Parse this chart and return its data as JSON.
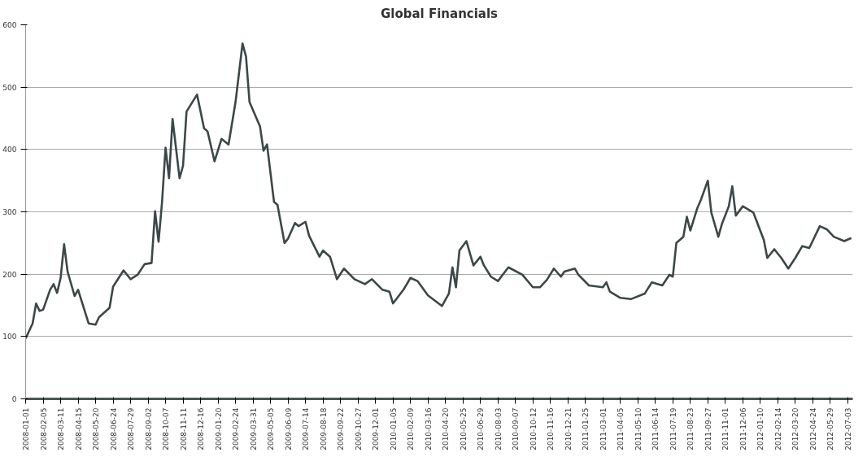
{
  "chart_data": {
    "type": "line",
    "title": "Global Financials",
    "x": [
      "2008-01-01",
      "2008-01-15",
      "2008-01-22",
      "2008-01-29",
      "2008-02-05",
      "2008-02-19",
      "2008-02-26",
      "2008-03-04",
      "2008-03-11",
      "2008-03-18",
      "2008-03-25",
      "2008-04-08",
      "2008-04-15",
      "2008-05-06",
      "2008-05-20",
      "2008-05-27",
      "2008-06-17",
      "2008-06-24",
      "2008-07-15",
      "2008-07-29",
      "2008-08-12",
      "2008-08-26",
      "2008-09-09",
      "2008-09-16",
      "2008-09-23",
      "2008-09-30",
      "2008-10-07",
      "2008-10-14",
      "2008-10-21",
      "2008-11-04",
      "2008-11-11",
      "2008-11-18",
      "2008-12-09",
      "2008-12-23",
      "2008-12-30",
      "2009-01-13",
      "2009-01-27",
      "2009-02-10",
      "2009-02-24",
      "2009-03-10",
      "2009-03-17",
      "2009-03-24",
      "2009-04-14",
      "2009-04-21",
      "2009-04-28",
      "2009-05-12",
      "2009-05-19",
      "2009-06-02",
      "2009-06-09",
      "2009-06-23",
      "2009-06-30",
      "2009-07-14",
      "2009-07-21",
      "2009-08-11",
      "2009-08-18",
      "2009-09-01",
      "2009-09-15",
      "2009-09-29",
      "2009-10-20",
      "2009-11-10",
      "2009-11-24",
      "2009-12-15",
      "2009-12-29",
      "2010-01-05",
      "2010-01-26",
      "2010-02-09",
      "2010-02-23",
      "2010-03-16",
      "2010-04-13",
      "2010-04-27",
      "2010-05-04",
      "2010-05-11",
      "2010-05-18",
      "2010-06-01",
      "2010-06-15",
      "2010-06-29",
      "2010-07-06",
      "2010-07-20",
      "2010-08-03",
      "2010-08-24",
      "2010-09-21",
      "2010-10-12",
      "2010-10-26",
      "2010-11-09",
      "2010-11-23",
      "2010-12-07",
      "2010-12-14",
      "2011-01-04",
      "2011-01-11",
      "2011-02-01",
      "2011-03-01",
      "2011-03-08",
      "2011-03-15",
      "2011-04-05",
      "2011-04-26",
      "2011-05-24",
      "2011-06-07",
      "2011-06-28",
      "2011-07-12",
      "2011-07-19",
      "2011-07-26",
      "2011-08-09",
      "2011-08-16",
      "2011-08-23",
      "2011-09-06",
      "2011-09-13",
      "2011-09-27",
      "2011-10-04",
      "2011-10-18",
      "2011-10-25",
      "2011-11-08",
      "2011-11-15",
      "2011-11-22",
      "2011-12-06",
      "2011-12-27",
      "2012-01-17",
      "2012-01-24",
      "2012-02-07",
      "2012-02-21",
      "2012-03-06",
      "2012-03-20",
      "2012-04-03",
      "2012-04-17",
      "2012-05-08",
      "2012-05-22",
      "2012-06-05",
      "2012-06-26",
      "2012-07-10"
    ],
    "series": [
      {
        "color": "#3c4748",
        "values": [
          97,
          121,
          153,
          141,
          143,
          175,
          184,
          170,
          194,
          248,
          204,
          165,
          175,
          121,
          119,
          131,
          146,
          180,
          206,
          192,
          199,
          216,
          218,
          301,
          252,
          316,
          403,
          354,
          449,
          354,
          374,
          461,
          488,
          434,
          429,
          381,
          417,
          408,
          476,
          570,
          549,
          476,
          437,
          398,
          408,
          316,
          311,
          250,
          257,
          282,
          277,
          284,
          262,
          228,
          238,
          228,
          192,
          209,
          192,
          184,
          192,
          175,
          172,
          153,
          175,
          194,
          189,
          166,
          149,
          169,
          211,
          179,
          238,
          253,
          214,
          228,
          214,
          196,
          189,
          211,
          199,
          179,
          179,
          191,
          209,
          196,
          204,
          209,
          199,
          182,
          179,
          187,
          172,
          162,
          160,
          169,
          187,
          182,
          199,
          196,
          250,
          260,
          292,
          270,
          306,
          319,
          350,
          299,
          260,
          280,
          309,
          341,
          294,
          309,
          299,
          255,
          226,
          240,
          226,
          209,
          226,
          245,
          242,
          277,
          272,
          260,
          253,
          258
        ]
      }
    ],
    "xlim": [
      "2008-01-01",
      "2012-07-13"
    ],
    "xticks": [
      "2008-01-01",
      "2008-02-05",
      "2008-03-11",
      "2008-04-15",
      "2008-05-20",
      "2008-06-24",
      "2008-07-29",
      "2008-09-02",
      "2008-10-07",
      "2008-11-11",
      "2008-12-16",
      "2009-01-20",
      "2009-02-24",
      "2009-03-31",
      "2009-05-05",
      "2009-06-09",
      "2009-07-14",
      "2009-08-18",
      "2009-09-22",
      "2009-10-27",
      "2009-12-01",
      "2010-01-05",
      "2010-02-09",
      "2010-03-16",
      "2010-04-20",
      "2010-05-25",
      "2010-06-29",
      "2010-08-03",
      "2010-09-07",
      "2010-10-12",
      "2010-11-16",
      "2010-12-21",
      "2011-01-25",
      "2011-03-01",
      "2011-04-05",
      "2011-05-10",
      "2011-06-14",
      "2011-07-19",
      "2011-08-23",
      "2011-09-27",
      "2011-11-01",
      "2011-12-06",
      "2012-01-10",
      "2012-02-14",
      "2012-03-20",
      "2012-04-24",
      "2012-05-29",
      "2012-07-03"
    ],
    "ylim": [
      0,
      600
    ],
    "yticks": [
      0,
      100,
      200,
      300,
      400,
      500,
      600
    ],
    "grid": "y",
    "marker": "none",
    "line_style": "solid"
  }
}
